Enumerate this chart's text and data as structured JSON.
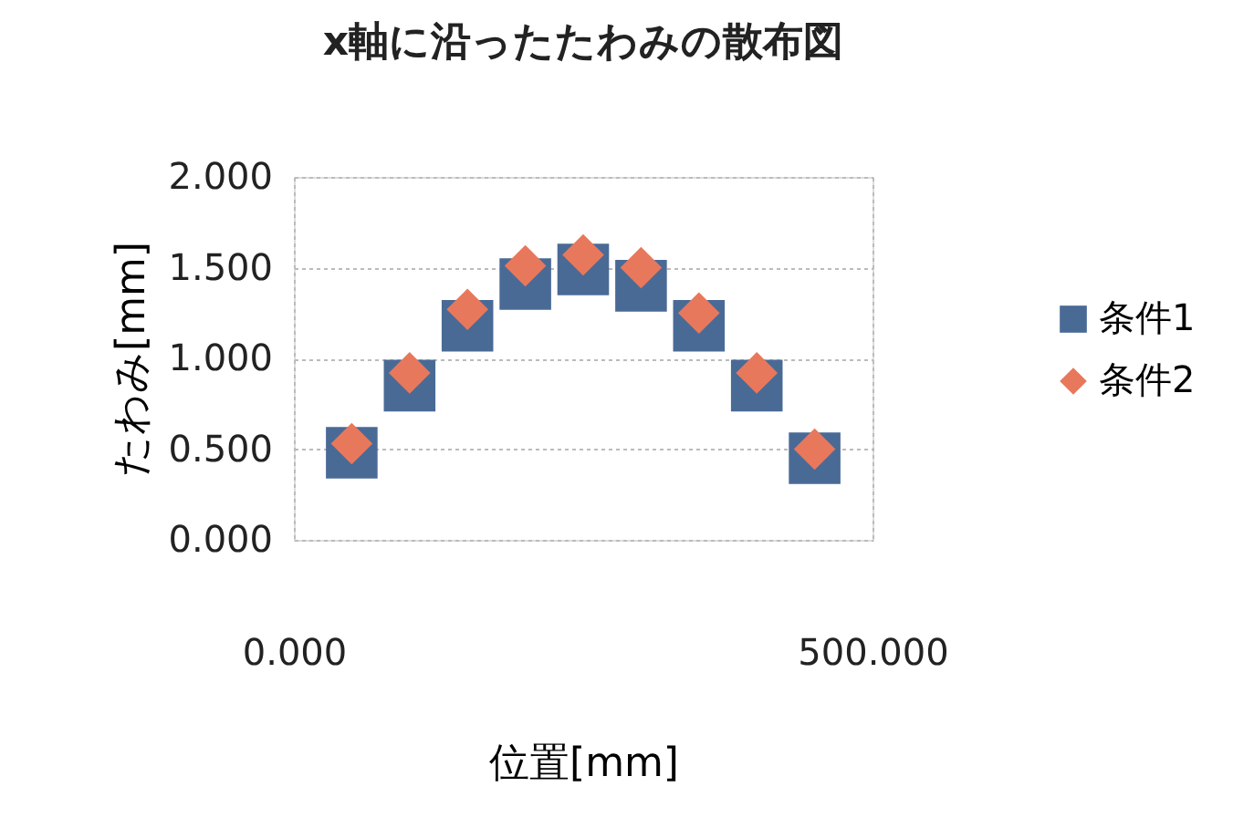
{
  "chart_data": {
    "type": "scatter",
    "title": "x軸に沿ったたわみの散布図",
    "xlabel": "位置[mm]",
    "ylabel": "たわみ[mm]",
    "x": [
      50,
      100,
      150,
      200,
      250,
      300,
      350,
      400,
      450
    ],
    "series": [
      {
        "name": "条件1",
        "color": "#4a6a96",
        "marker": "square",
        "values": [
          0.48,
          0.85,
          1.18,
          1.41,
          1.49,
          1.4,
          1.18,
          0.85,
          0.45
        ]
      },
      {
        "name": "条件2",
        "color": "#e8785c",
        "marker": "diamond",
        "values": [
          0.53,
          0.92,
          1.27,
          1.51,
          1.57,
          1.5,
          1.25,
          0.92,
          0.5
        ]
      }
    ],
    "xlim": [
      0,
      500
    ],
    "xticks": [
      {
        "value": 0,
        "label": "0.000"
      },
      {
        "value": 500,
        "label": "500.000"
      }
    ],
    "ylim": [
      0,
      2
    ],
    "yticks": [
      {
        "value": 0,
        "label": "0.000"
      },
      {
        "value": 0.5,
        "label": "0.500"
      },
      {
        "value": 1,
        "label": "1.000"
      },
      {
        "value": 1.5,
        "label": "1.500"
      },
      {
        "value": 2,
        "label": "2.000"
      }
    ],
    "grid": true,
    "legend": "right"
  }
}
